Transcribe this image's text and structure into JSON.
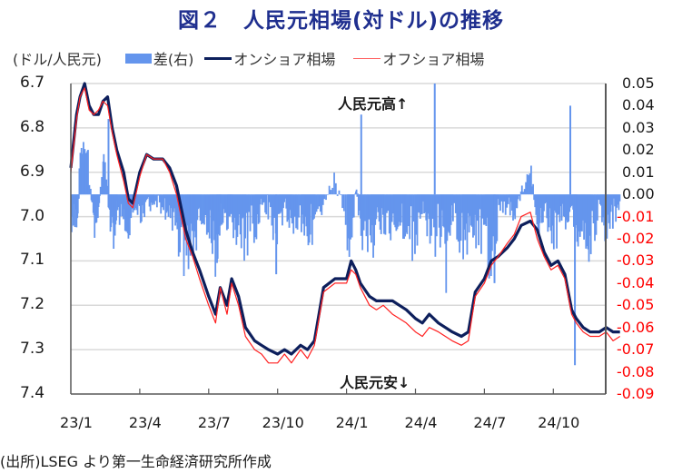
{
  "title": "図２　人民元相場(対ドル)の推移",
  "legend": {
    "unit": "(ドル/人民元)",
    "items": [
      {
        "label": "差(右)",
        "type": "bar",
        "color": "#6495ed"
      },
      {
        "label": "オンショア相場",
        "type": "line",
        "color": "#0d1f5c"
      },
      {
        "label": "オフショア相場",
        "type": "line",
        "color": "#ff2020"
      }
    ]
  },
  "annotations": {
    "top": "人民元高↑",
    "bottom": "人民元安↓"
  },
  "source": "(出所)LSEG より第一生命経済研究所作成",
  "chart_data": {
    "type": "line+bar",
    "title": "図２　人民元相場(対ドル)の推移",
    "xlabel": "",
    "ylabel_left": "(ドル/人民元)",
    "ylabel_right": "差(右)",
    "left_axis": {
      "ylim": [
        6.7,
        7.4
      ],
      "inverted": true,
      "ticks": [
        "6.7",
        "6.8",
        "6.9",
        "7.0",
        "7.1",
        "7.2",
        "7.3",
        "7.4"
      ]
    },
    "right_axis": {
      "ylim": [
        -0.09,
        0.05
      ],
      "ticks": [
        "0.05",
        "0.04",
        "0.03",
        "0.02",
        "0.01",
        "0.00",
        "-0.01",
        "-0.02",
        "-0.03",
        "-0.04",
        "-0.05",
        "-0.06",
        "-0.07",
        "-0.08",
        "-0.09"
      ],
      "negative_color": "#ff0000"
    },
    "x_ticks": [
      "23/1",
      "23/4",
      "23/7",
      "23/10",
      "24/1",
      "24/4",
      "24/7",
      "24/10"
    ],
    "grid": true,
    "legend_position": "top",
    "x_months": [
      0,
      0.25,
      0.4,
      0.6,
      0.8,
      1.0,
      1.2,
      1.4,
      1.6,
      1.8,
      2.0,
      2.3,
      2.5,
      2.7,
      3.0,
      3.3,
      3.6,
      4.0,
      4.3,
      4.6,
      5.0,
      5.3,
      5.6,
      6.0,
      6.3,
      6.5,
      6.8,
      7.0,
      7.3,
      7.6,
      8.0,
      8.3,
      8.6,
      9.0,
      9.3,
      9.6,
      10.0,
      10.3,
      10.6,
      11.0,
      11.5,
      12.0,
      12.2,
      12.4,
      12.6,
      13.0,
      13.3,
      13.6,
      14.0,
      14.3,
      14.6,
      15.0,
      15.3,
      15.6,
      16.0,
      16.3,
      16.6,
      17.0,
      17.3,
      17.6,
      18.0,
      18.3,
      18.6,
      19.0,
      19.3,
      19.6,
      20.0,
      20.3,
      20.6,
      20.9,
      21.2,
      21.5,
      21.8,
      22.0,
      22.3,
      22.6,
      23.0,
      23.3,
      23.6,
      23.9
    ],
    "series": [
      {
        "name": "オンショア相場",
        "axis": "left",
        "color": "#0d1f5c",
        "values": [
          6.89,
          6.77,
          6.73,
          6.7,
          6.75,
          6.77,
          6.77,
          6.74,
          6.73,
          6.8,
          6.85,
          6.9,
          6.96,
          6.97,
          6.9,
          6.86,
          6.87,
          6.87,
          6.89,
          6.93,
          7.03,
          7.08,
          7.12,
          7.18,
          7.22,
          7.16,
          7.2,
          7.14,
          7.18,
          7.25,
          7.28,
          7.29,
          7.3,
          7.31,
          7.3,
          7.31,
          7.29,
          7.3,
          7.28,
          7.16,
          7.14,
          7.14,
          7.1,
          7.12,
          7.15,
          7.18,
          7.19,
          7.19,
          7.19,
          7.2,
          7.21,
          7.23,
          7.24,
          7.22,
          7.24,
          7.25,
          7.26,
          7.27,
          7.26,
          7.17,
          7.14,
          7.1,
          7.09,
          7.07,
          7.05,
          7.02,
          7.01,
          7.03,
          7.08,
          7.11,
          7.1,
          7.13,
          7.21,
          7.23,
          7.25,
          7.26,
          7.26,
          7.25,
          7.26,
          7.26
        ]
      },
      {
        "name": "オフショア相場",
        "axis": "left",
        "color": "#ff2020",
        "values": [
          6.9,
          6.78,
          6.73,
          6.71,
          6.76,
          6.77,
          6.76,
          6.74,
          6.75,
          6.81,
          6.86,
          6.92,
          6.97,
          6.98,
          6.91,
          6.86,
          6.87,
          6.87,
          6.9,
          6.95,
          7.05,
          7.09,
          7.14,
          7.2,
          7.24,
          7.16,
          7.22,
          7.15,
          7.2,
          7.27,
          7.3,
          7.31,
          7.33,
          7.33,
          7.31,
          7.33,
          7.3,
          7.32,
          7.29,
          7.17,
          7.15,
          7.15,
          7.12,
          7.13,
          7.16,
          7.2,
          7.21,
          7.2,
          7.22,
          7.23,
          7.24,
          7.26,
          7.27,
          7.25,
          7.26,
          7.27,
          7.28,
          7.29,
          7.28,
          7.18,
          7.15,
          7.11,
          7.09,
          7.06,
          7.04,
          7.0,
          6.99,
          7.05,
          7.09,
          7.12,
          7.11,
          7.14,
          7.22,
          7.24,
          7.26,
          7.27,
          7.27,
          7.26,
          7.28,
          7.27
        ]
      },
      {
        "name": "差(右)",
        "axis": "right",
        "type": "bar",
        "color": "#6495ed",
        "values": [
          -0.02,
          -0.01,
          0.02,
          0.034,
          0.005,
          -0.015,
          -0.005,
          0.02,
          -0.005,
          -0.02,
          -0.01,
          -0.02,
          -0.015,
          -0.005,
          -0.01,
          -0.005,
          -0.003,
          -0.005,
          -0.01,
          -0.02,
          -0.03,
          -0.025,
          -0.01,
          -0.02,
          -0.03,
          -0.01,
          -0.02,
          -0.015,
          -0.02,
          -0.025,
          -0.015,
          -0.005,
          -0.01,
          -0.02,
          -0.005,
          -0.015,
          -0.01,
          -0.02,
          -0.01,
          -0.005,
          0.01,
          -0.02,
          -0.015,
          0.005,
          -0.02,
          -0.025,
          -0.01,
          -0.02,
          -0.015,
          -0.01,
          -0.02,
          -0.02,
          -0.005,
          -0.025,
          -0.015,
          -0.03,
          -0.01,
          -0.025,
          -0.02,
          -0.015,
          -0.03,
          -0.025,
          -0.01,
          -0.005,
          -0.01,
          0.005,
          0.01,
          -0.015,
          -0.005,
          -0.02,
          -0.015,
          -0.01,
          -0.005,
          -0.02,
          -0.015,
          -0.025,
          -0.005,
          -0.02,
          -0.01,
          -0.01
        ]
      }
    ],
    "bar_spikes": [
      {
        "x_month": 1.6,
        "value": 0.034
      },
      {
        "x_month": 8.9,
        "value": -0.036
      },
      {
        "x_month": 12.6,
        "value": 0.036
      },
      {
        "x_month": 15.8,
        "value": 0.05
      },
      {
        "x_month": 18.4,
        "value": -0.04
      },
      {
        "x_month": 21.7,
        "value": 0.04
      },
      {
        "x_month": 21.9,
        "value": -0.077
      }
    ]
  }
}
